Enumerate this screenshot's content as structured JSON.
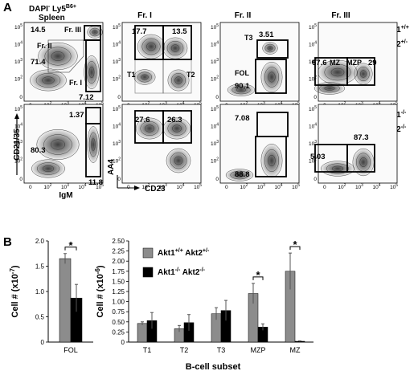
{
  "panel_letters": {
    "a": "A",
    "b": "B"
  },
  "flow": {
    "top_left_title_1": "DAPI",
    "top_left_title_1_sup": "-",
    "top_left_title_2": " Ly5",
    "top_left_title_2_sup": "B6+",
    "top_left_title_3": "Spleen",
    "column_titles": [
      "Fr. I",
      "Fr. II",
      "Fr. III"
    ],
    "gate_names": {
      "fr_iii": "Fr. III",
      "fr_ii": "Fr. II",
      "fr_i": "Fr. I",
      "t1": "T1",
      "t2": "T2",
      "t3": "T3",
      "fol": "FOL",
      "mz": "MZ",
      "mzp": "MZP"
    },
    "axis_labels": {
      "cd2135": "CD21/35",
      "igm": "IgM",
      "aa4": "AA4",
      "cd23": "CD23"
    },
    "row_labels": [
      {
        "l1": "Akt1",
        "s1": "+/+",
        "l2": "Akt2",
        "s2": "+/-"
      },
      {
        "l1": "Akt1",
        "s1": "-/-",
        "l2": "Akt2",
        "s2": "-/-"
      }
    ],
    "tick_labels": [
      "0",
      "10",
      "2",
      "10",
      "3",
      "10",
      "4",
      "10",
      "5"
    ],
    "row1": {
      "p1": {
        "a": "14.5",
        "b": "71.4",
        "c": "7.12"
      },
      "p2": {
        "a": "17.7",
        "b": "13.5"
      },
      "p3": {
        "a": "3.51",
        "b": "90.1"
      },
      "p4": {
        "a": "67.6",
        "b": "29"
      }
    },
    "row2": {
      "p1": {
        "a": "1.37",
        "b": "80.3",
        "c": "11.8"
      },
      "p2": {
        "a": "27.6",
        "b": "26.3"
      },
      "p3": {
        "a": "7.08",
        "b": "88.8"
      },
      "p4": {
        "a": "5.03",
        "b": "87.3"
      }
    }
  },
  "chart_data": [
    {
      "type": "bar",
      "categories": [
        "FOL"
      ],
      "series": [
        {
          "name": "Akt1+/+ Akt2+/-",
          "values": [
            1.65
          ],
          "errors": [
            0.1
          ],
          "color": "#8c8c8c"
        },
        {
          "name": "Akt1-/- Akt2-/-",
          "values": [
            0.87
          ],
          "errors": [
            0.27
          ],
          "color": "#000000"
        }
      ],
      "ylabel": "Cell # (x10",
      "ylabel_sup": "-7",
      "ylabel_end": ")",
      "ylim": [
        0,
        2
      ],
      "yticks": [
        "0",
        "0.5",
        "1.0",
        "1.5",
        "2.0"
      ],
      "significance": [
        {
          "category": "FOL",
          "label": "*"
        }
      ]
    },
    {
      "type": "bar",
      "categories": [
        "T1",
        "T2",
        "T3",
        "MZP",
        "MZ"
      ],
      "series": [
        {
          "name": "Akt1+/+ Akt2+/-",
          "values": [
            0.46,
            0.33,
            0.7,
            1.2,
            1.75
          ],
          "errors": [
            0.04,
            0.08,
            0.15,
            0.25,
            0.45
          ],
          "color": "#8c8c8c"
        },
        {
          "name": "Akt1-/- Akt2-/-",
          "values": [
            0.53,
            0.48,
            0.78,
            0.37,
            0.02
          ],
          "errors": [
            0.2,
            0.2,
            0.25,
            0.08,
            0.01
          ],
          "color": "#000000"
        }
      ],
      "xlabel": "B-cell subset",
      "ylabel": "Cell # (x10",
      "ylabel_sup": "-6",
      "ylabel_end": ")",
      "ylim": [
        0,
        2.5
      ],
      "yticks": [
        "0",
        "0.25",
        "0.50",
        "0.75",
        "1.00",
        "1.25",
        "1.50",
        "1.75",
        "2.00",
        "2.25",
        "2.50"
      ],
      "legend_position": "top-left",
      "legend": [
        {
          "l1": "Akt1",
          "s1": "+/+",
          "l2": " Akt2",
          "s2": "+/-"
        },
        {
          "l1": "Akt1",
          "s1": "-/-",
          "l2": " Akt2",
          "s2": "-/-"
        }
      ],
      "significance": [
        {
          "category": "MZP",
          "label": "*"
        },
        {
          "category": "MZ",
          "label": "*"
        }
      ]
    }
  ]
}
